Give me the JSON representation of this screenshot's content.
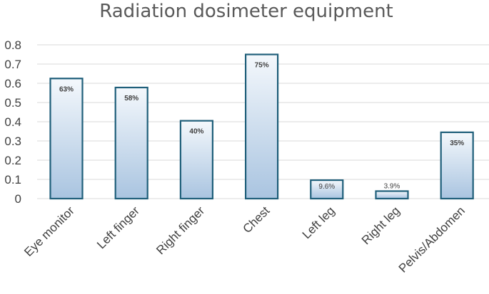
{
  "chart_data": {
    "type": "bar",
    "title": "Radiation dosimeter equipment",
    "categories": [
      "Eye monitor",
      "Left finger",
      "Right finger",
      "Chest",
      "Left leg",
      "Right leg",
      "Pelvis/Abdomen"
    ],
    "values": [
      0.625,
      0.578,
      0.405,
      0.75,
      0.096,
      0.039,
      0.345
    ],
    "data_labels": [
      "63%",
      "58%",
      "40%",
      "75%",
      "9.6%",
      "3.9%",
      "35%"
    ],
    "yticks": [
      "0",
      "0.1",
      "0.2",
      "0.3",
      "0.4",
      "0.5",
      "0.6",
      "0.7",
      "0.8"
    ],
    "ylim": [
      0,
      0.8
    ],
    "xlabel": "",
    "ylabel": "",
    "grid": true,
    "legend": "none",
    "colors": {
      "bar_top": "#f4f8fc",
      "bar_bottom": "#a9c4e0",
      "bar_border": "#1f5f7a",
      "gridline": "#d9d9d9",
      "text": "#404040",
      "title": "#595959"
    }
  }
}
